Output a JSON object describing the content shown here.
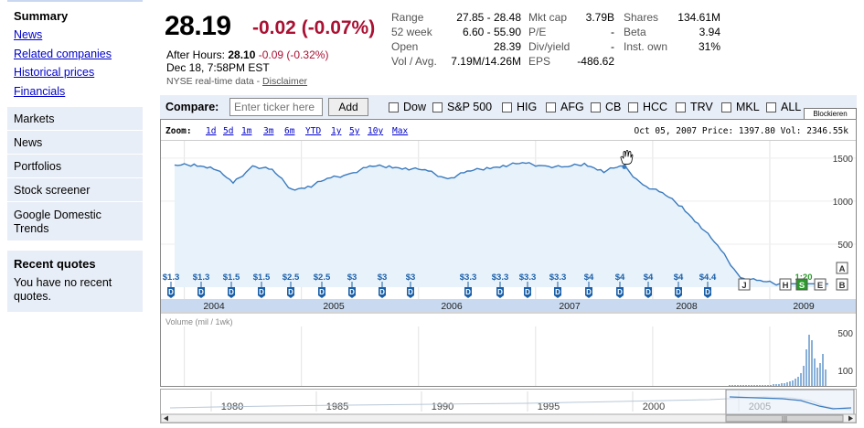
{
  "sidebar": {
    "summary": "Summary",
    "links": [
      "News",
      "Related companies",
      "Historical prices",
      "Financials"
    ],
    "blocks": [
      "Markets",
      "News",
      "Portfolios",
      "Stock screener"
    ],
    "trends_line1": "Google Domestic",
    "trends_line2": "Trends",
    "recent_title": "Recent quotes",
    "recent_text_1": "You have no recent",
    "recent_text_2": "quotes."
  },
  "quote": {
    "price": "28.19",
    "change": "-0.02 (-0.07%)",
    "after_label": "After Hours:",
    "after_price": "28.10",
    "after_change": "-0.09 (-0.32%)",
    "datetime": "Dec 18, 7:58PM EST",
    "realtime_text": "NYSE real-time data - ",
    "disclaimer": "Disclaimer"
  },
  "stats": {
    "col1": [
      {
        "k": "Range",
        "v": "27.85 - 28.48"
      },
      {
        "k": "52 week",
        "v": "6.60 - 55.90"
      },
      {
        "k": "Open",
        "v": "28.39"
      },
      {
        "k": "Vol / Avg.",
        "v": "7.19M/14.26M"
      }
    ],
    "col2": [
      {
        "k": "Mkt cap",
        "v": "3.79B"
      },
      {
        "k": "P/E",
        "v": "-"
      },
      {
        "k": "Div/yield",
        "v": "-"
      },
      {
        "k": "EPS",
        "v": "-486.62"
      }
    ],
    "col3": [
      {
        "k": "Shares",
        "v": "134.61M"
      },
      {
        "k": "Beta",
        "v": "3.94"
      },
      {
        "k": "Inst. own",
        "v": "31%"
      }
    ]
  },
  "compare": {
    "label": "Compare:",
    "placeholder": "Enter ticker here",
    "add": "Add",
    "tickers": [
      "Dow",
      "S&P 500",
      "HIG",
      "AFG",
      "CB",
      "HCC",
      "TRV",
      "MKL",
      "ALL"
    ],
    "blockieren": "Blockieren"
  },
  "zoom": {
    "label": "Zoom:",
    "options": [
      "1d",
      "5d",
      "1m",
      "3m",
      "6m",
      "YTD",
      "1y",
      "5y",
      "10y",
      "Max"
    ],
    "info": "Oct 05, 2007 Price: 1397.80 Vol: 2346.55k"
  },
  "chart_data": {
    "type": "line",
    "price_axis_ticks": [
      "1500",
      "1000",
      "500"
    ],
    "x_labels": [
      "2004",
      "2005",
      "2006",
      "2007",
      "2008",
      "2009"
    ],
    "dividends": [
      "$1.3",
      "$1.3",
      "$1.5",
      "$1.5",
      "$2.5",
      "$2.5",
      "$3",
      "$3",
      "$3",
      "$3.3",
      "$3.3",
      "$3.3",
      "$3.3",
      "$4",
      "$4",
      "$4",
      "$4",
      "$4.4"
    ],
    "split_label": "1:20",
    "flags": [
      "J",
      "H",
      "S",
      "E",
      "B",
      "A"
    ],
    "volume_label": "Volume (mil / 1wk)",
    "volume_ticks": [
      "500",
      "100"
    ],
    "series": [
      {
        "x": [
          "2003-12",
          "2004-02",
          "2004-04",
          "2004-06",
          "2004-08",
          "2004-10",
          "2004-12",
          "2005-02",
          "2005-04",
          "2005-06",
          "2005-08",
          "2005-10",
          "2005-12",
          "2006-02",
          "2006-04",
          "2006-06",
          "2006-08",
          "2006-10",
          "2006-12",
          "2007-02",
          "2007-04",
          "2007-06",
          "2007-08",
          "2007-10",
          "2007-12",
          "2008-02",
          "2008-04",
          "2008-06",
          "2008-08",
          "2008-10",
          "2008-12",
          "2009-02"
        ],
        "values": [
          1400,
          1430,
          1390,
          1200,
          1420,
          1350,
          1140,
          1180,
          1260,
          1330,
          1390,
          1410,
          1380,
          1340,
          1270,
          1330,
          1390,
          1420,
          1430,
          1420,
          1380,
          1440,
          1350,
          1398,
          1200,
          1080,
          940,
          700,
          420,
          120,
          60,
          40
        ]
      }
    ]
  },
  "timeline": {
    "years": [
      "1980",
      "1985",
      "1990",
      "1995",
      "2000",
      "2005"
    ]
  }
}
